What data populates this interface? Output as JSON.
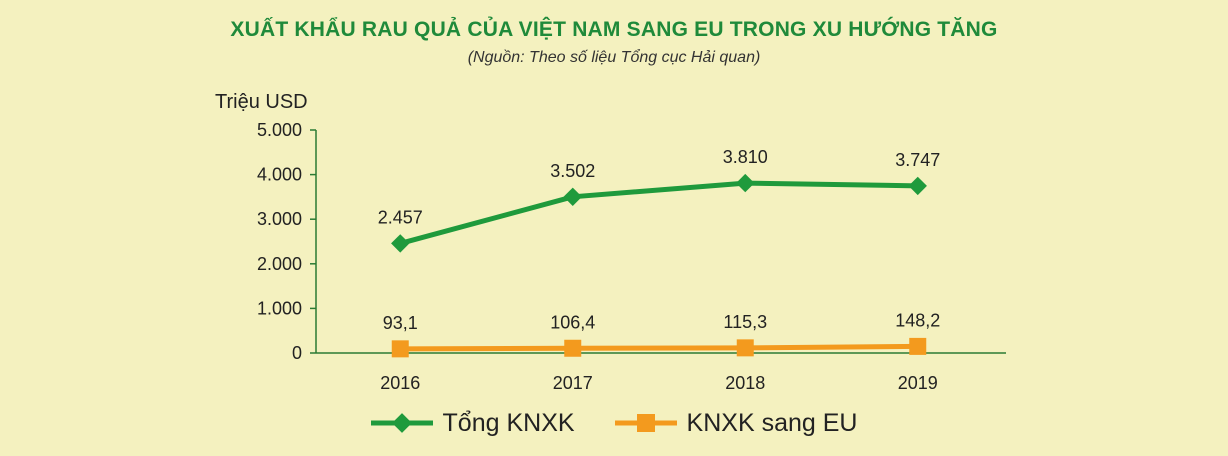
{
  "title": "XUẤT KHẨU RAU QUẢ CỦA VIỆT NAM SANG EU TRONG XU HƯỚNG TĂNG",
  "subtitle": "(Nguồn: Theo số liệu Tổng cục Hải quan)",
  "colors": {
    "background": "#f4f1bf",
    "title": "#1f8a3a",
    "series_total": "#1f9a3c",
    "series_eu": "#f39a1e",
    "axis": "#2b7a34"
  },
  "chart_data": {
    "type": "line",
    "title": "XUẤT KHẨU RAU QUẢ CỦA VIỆT NAM SANG EU TRONG XU HƯỚNG TĂNG",
    "subtitle": "(Nguồn: Theo số liệu Tổng cục Hải quan)",
    "ylabel": "Triệu USD",
    "xlabel": "",
    "categories": [
      "2016",
      "2017",
      "2018",
      "2019"
    ],
    "ylim": [
      0,
      5000
    ],
    "yticks": [
      0,
      1000,
      2000,
      3000,
      4000,
      5000
    ],
    "ytick_labels": [
      "0",
      "1.000",
      "2.000",
      "3.000",
      "4.000",
      "5.000"
    ],
    "grid": false,
    "legend_position": "bottom",
    "series": [
      {
        "name": "Tổng KNXK",
        "marker": "diamond",
        "color": "#1f9a3c",
        "values": [
          2457,
          3502,
          3810,
          3747
        ],
        "labels": [
          "2.457",
          "3.502",
          "3.810",
          "3.747"
        ]
      },
      {
        "name": "KNXK sang EU",
        "marker": "square",
        "color": "#f39a1e",
        "values": [
          93.1,
          106.4,
          115.3,
          148.2
        ],
        "labels": [
          "93,1",
          "106,4",
          "115,3",
          "148,2"
        ]
      }
    ]
  }
}
